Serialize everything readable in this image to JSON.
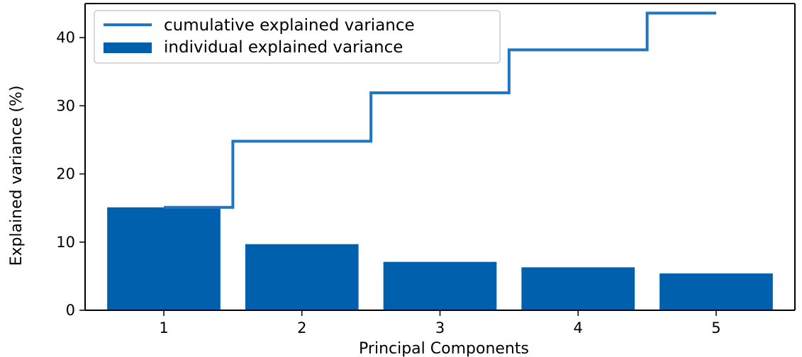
{
  "chart_data": {
    "type": "bar",
    "xlabel": "Principal Components",
    "ylabel": "Explained variance (%)",
    "categories": [
      "1",
      "2",
      "3",
      "4",
      "5"
    ],
    "series": [
      {
        "name": "individual explained variance",
        "type": "bar",
        "color": "#0060ad",
        "values": [
          15.1,
          9.7,
          7.1,
          6.3,
          5.4
        ]
      },
      {
        "name": "cumulative explained variance",
        "type": "step",
        "color": "#1f77c4",
        "values": [
          15.1,
          24.8,
          31.9,
          38.2,
          43.6
        ]
      }
    ],
    "ylim": [
      0,
      45
    ],
    "yticks": [
      0,
      10,
      20,
      30,
      40
    ],
    "grid": false,
    "legend_position": "top-left"
  }
}
